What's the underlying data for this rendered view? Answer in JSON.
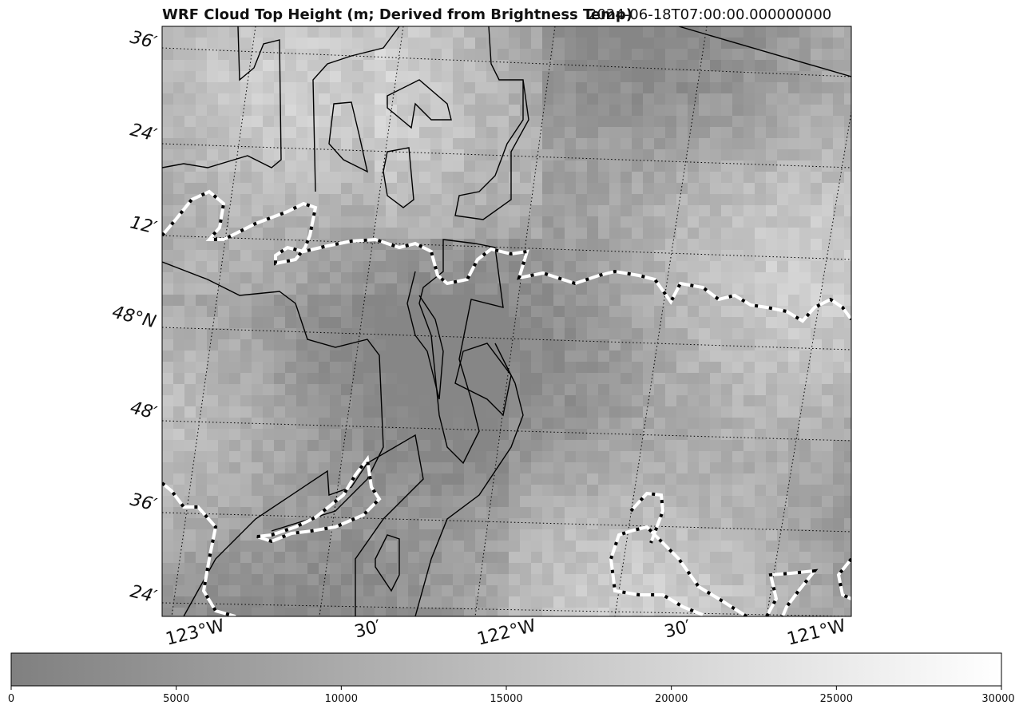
{
  "title": "WRF Cloud Top Height (m; Derived from Brightness Temp)",
  "timestamp": "2024-06-18T07:00:00.000000000",
  "map": {
    "lat_labels": [
      "36′",
      "24′",
      "12′",
      "48°N",
      "48′",
      "36′",
      "24′"
    ],
    "lon_labels": [
      "123°W",
      "30′",
      "122°W",
      "30′",
      "121°W"
    ],
    "gridlines": "dotted",
    "coastline_color": "#000000",
    "contour_style": "white-black-dashed"
  },
  "colorbar": {
    "ticks": [
      "0",
      "5000",
      "10000",
      "15000",
      "20000",
      "25000",
      "30000"
    ],
    "range": [
      0,
      30000
    ],
    "color_min": "#808080",
    "color_max": "#ffffff",
    "orientation": "horizontal"
  }
}
